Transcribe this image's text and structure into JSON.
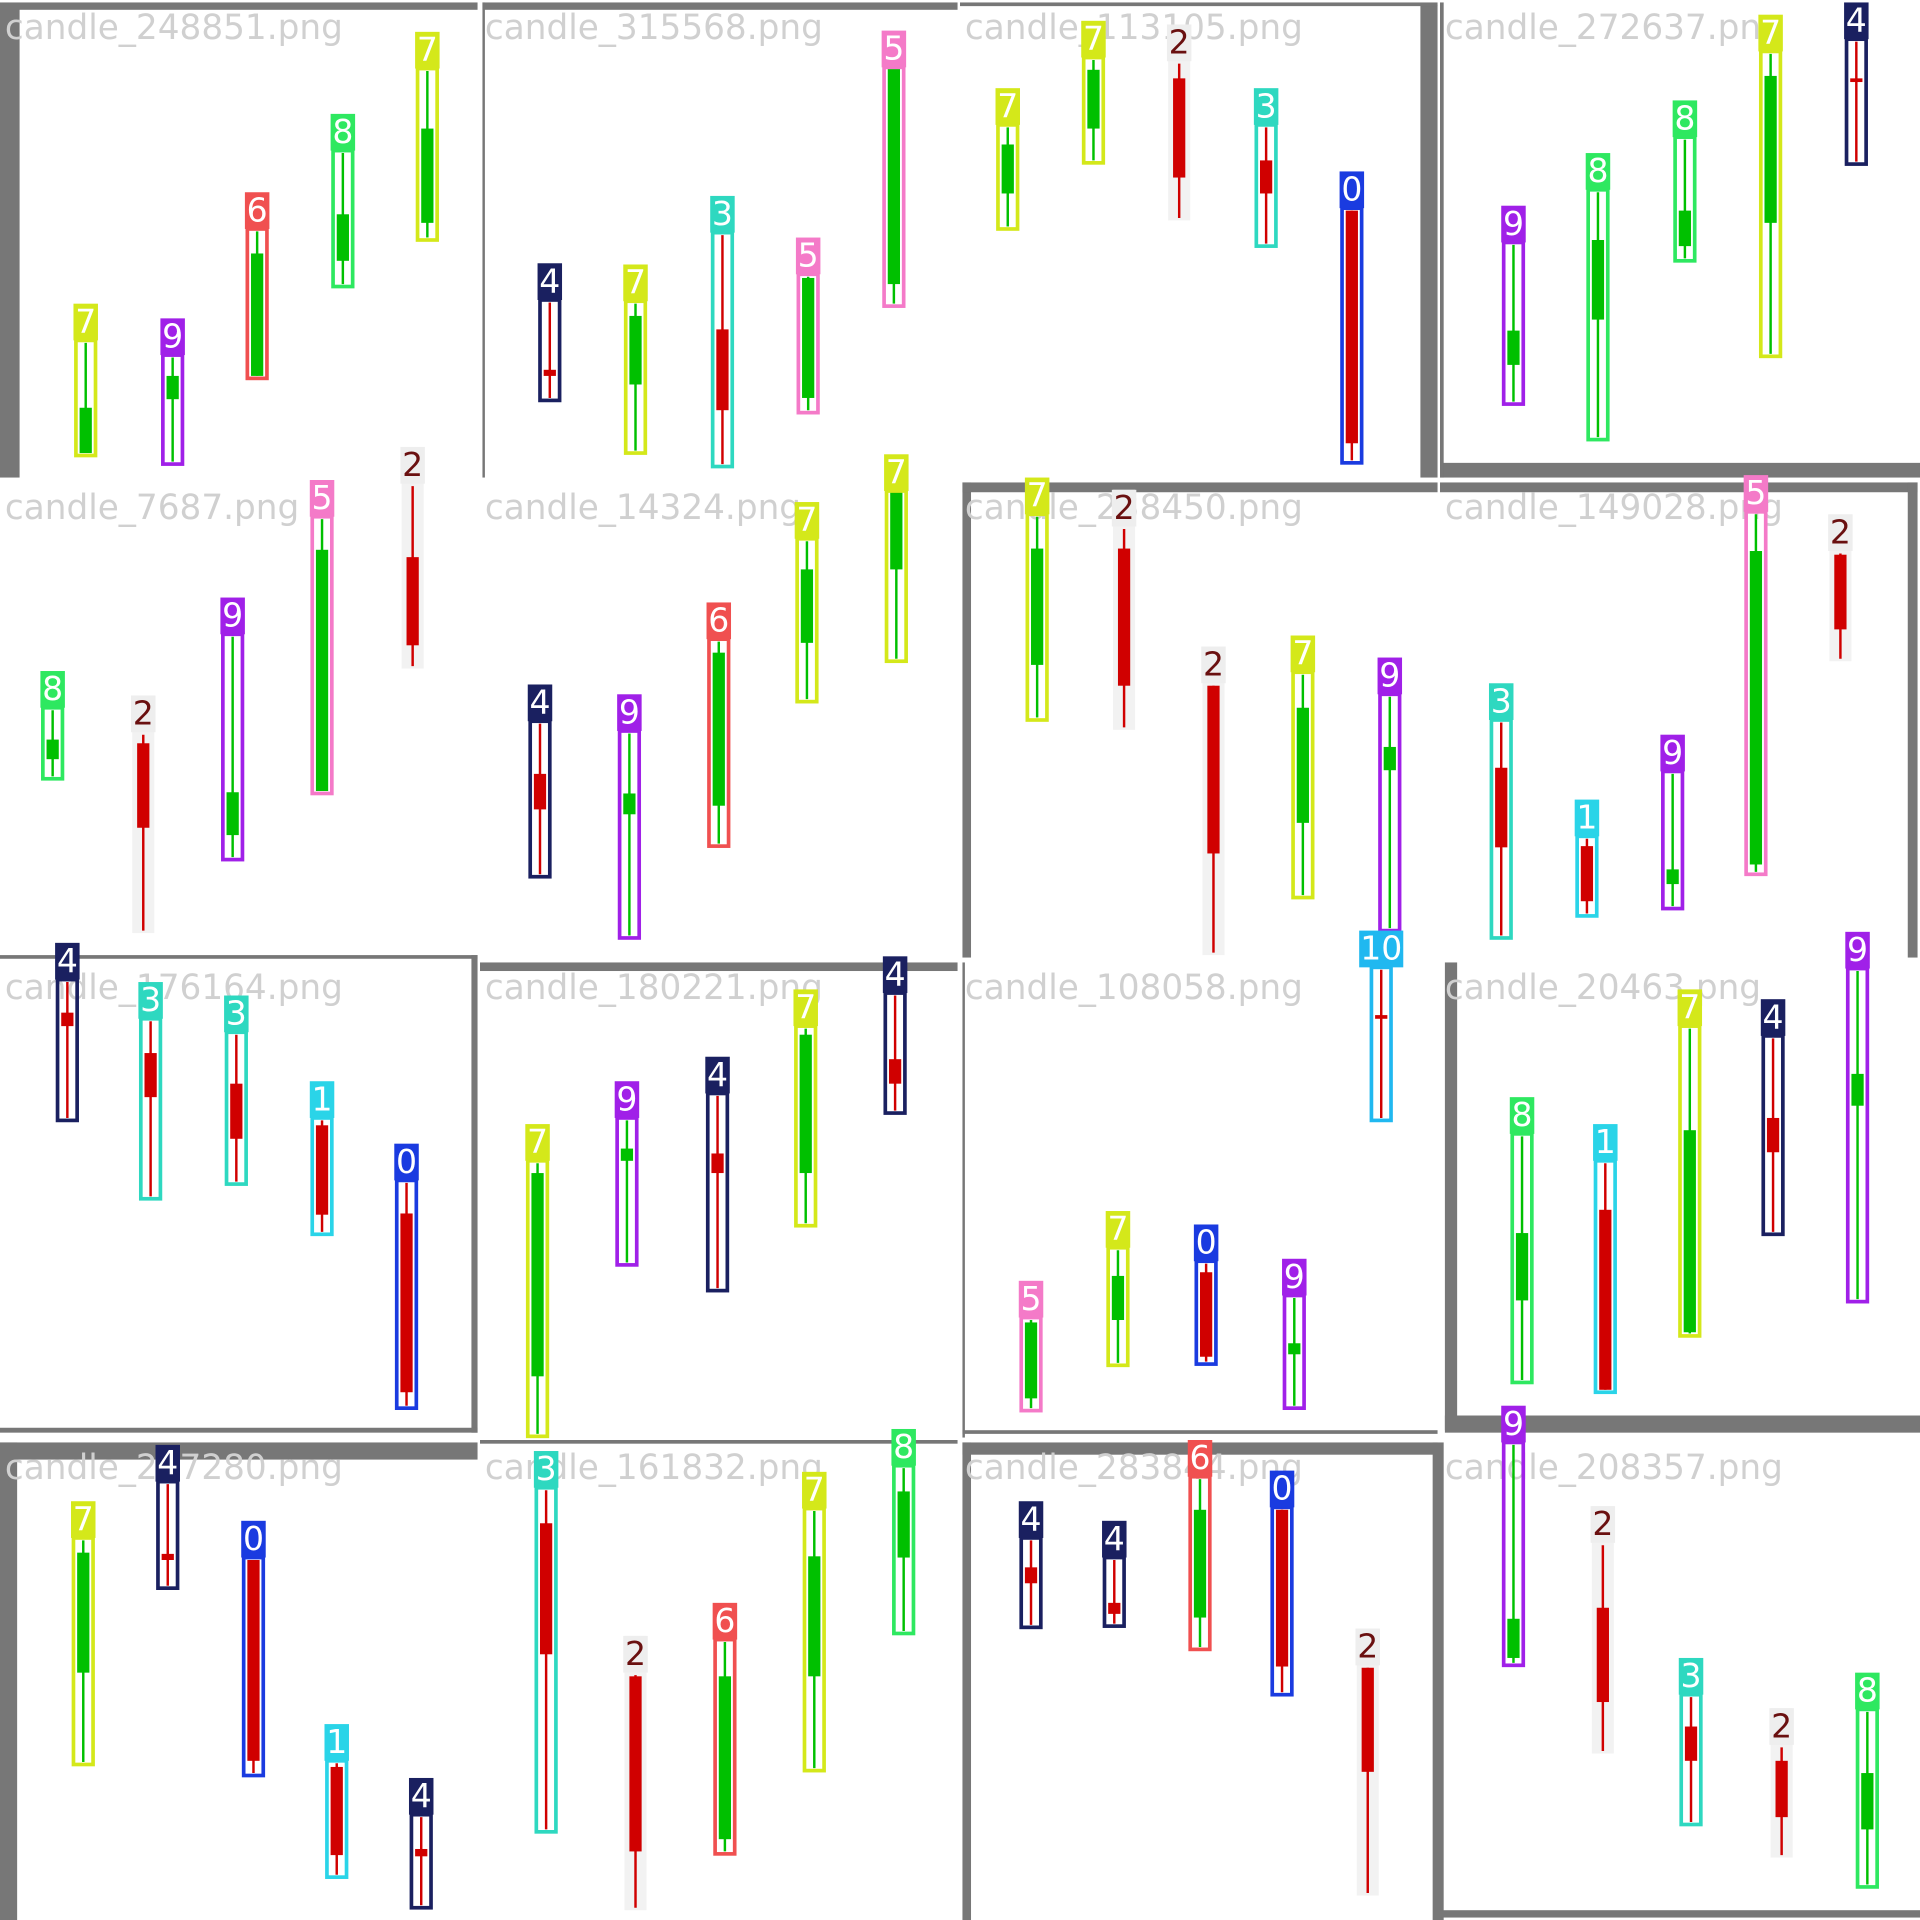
{
  "tiles": [
    {
      "filename": "candle_248851.png",
      "labels": [
        "7",
        "9",
        "6",
        "8",
        "7"
      ]
    },
    {
      "filename": "candle_315568.png",
      "labels": [
        "4",
        "7",
        "3",
        "5",
        "5"
      ]
    },
    {
      "filename": "candle_113105.png",
      "labels": [
        "7",
        "7",
        "2",
        "3",
        "0"
      ]
    },
    {
      "filename": "candle_272637.png",
      "labels": [
        "9",
        "8",
        "8",
        "7",
        "4"
      ]
    },
    {
      "filename": "candle_7687.png",
      "labels": [
        "8",
        "2",
        "9",
        "5",
        "2"
      ]
    },
    {
      "filename": "candle_14324.png",
      "labels": [
        "4",
        "9",
        "6",
        "7",
        "7"
      ]
    },
    {
      "filename": "candle_238450.png",
      "labels": [
        "7",
        "2",
        "2",
        "7",
        "9"
      ]
    },
    {
      "filename": "candle_149028.png",
      "labels": [
        "3",
        "1",
        "9",
        "5",
        "2"
      ]
    },
    {
      "filename": "candle_176164.png",
      "labels": [
        "4",
        "3",
        "3",
        "1",
        "0"
      ]
    },
    {
      "filename": "candle_180221.png",
      "labels": [
        "7",
        "9",
        "4",
        "7",
        "4"
      ]
    },
    {
      "filename": "candle_108058.png",
      "labels": [
        "10",
        "5",
        "7",
        "0",
        "9"
      ]
    },
    {
      "filename": "candle_20463.png",
      "labels": [
        "8",
        "1",
        "7",
        "4",
        "9"
      ]
    },
    {
      "filename": "candle_247280.png",
      "labels": [
        "7",
        "4",
        "0",
        "1",
        "4"
      ]
    },
    {
      "filename": "candle_161832.png",
      "labels": [
        "3",
        "2",
        "6",
        "7",
        "8"
      ]
    },
    {
      "filename": "candle_283844.png",
      "labels": [
        "4",
        "4",
        "6",
        "0",
        "2"
      ]
    },
    {
      "filename": "candle_208357.png",
      "labels": [
        "9",
        "2",
        "3",
        "2",
        "8"
      ]
    }
  ]
}
